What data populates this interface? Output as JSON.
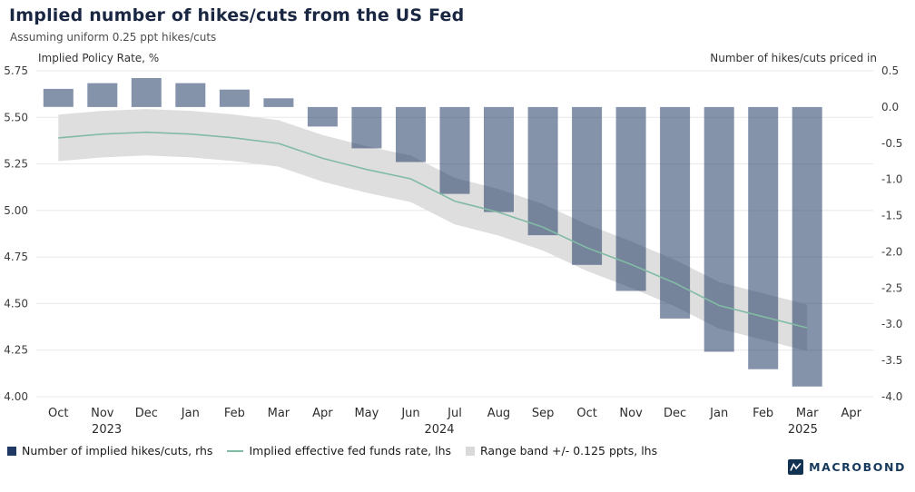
{
  "header": {
    "title": "Implied number of hikes/cuts from the US Fed",
    "subtitle": "Assuming uniform 0.25 ppt hikes/cuts"
  },
  "axes": {
    "left_title": "Implied Policy Rate, %",
    "right_title": "Number of hikes/cuts priced in"
  },
  "legend": [
    {
      "type": "bar",
      "label": "Number of implied hikes/cuts, rhs",
      "color": "#1f3864"
    },
    {
      "type": "line",
      "label": "Implied effective fed funds rate, lhs",
      "color": "#82bba4"
    },
    {
      "type": "band",
      "label": "Range band +/- 0.125 ppts, lhs",
      "color": "#d9d9d9"
    }
  ],
  "branding": {
    "logo_text": "MACROBOND"
  },
  "chart_data": {
    "type": "bar+line+area",
    "categories": [
      "Oct",
      "Nov",
      "Dec",
      "Jan",
      "Feb",
      "Mar",
      "Apr",
      "May",
      "Jun",
      "Jul",
      "Aug",
      "Sep",
      "Oct",
      "Nov",
      "Dec",
      "Jan",
      "Feb",
      "Mar",
      "Apr"
    ],
    "year_labels": [
      {
        "label": "2023",
        "slot": 1.1
      },
      {
        "label": "2024",
        "slot": 8.65
      },
      {
        "label": "2025",
        "slot": 16.9
      }
    ],
    "series": [
      {
        "name": "Number of implied hikes/cuts, rhs",
        "type": "bar",
        "axis": "right",
        "values": [
          0.25,
          0.33,
          0.4,
          0.33,
          0.24,
          0.12,
          -0.27,
          -0.57,
          -0.76,
          -1.2,
          -1.45,
          -1.77,
          -2.18,
          -2.54,
          -2.92,
          -3.38,
          -3.62,
          -3.86,
          null
        ]
      },
      {
        "name": "Implied effective fed funds rate, lhs",
        "type": "line",
        "axis": "left",
        "values": [
          5.39,
          5.41,
          5.42,
          5.41,
          5.39,
          5.36,
          5.28,
          5.22,
          5.17,
          5.05,
          4.99,
          4.91,
          4.8,
          4.71,
          4.61,
          4.49,
          4.43,
          4.37,
          null
        ]
      },
      {
        "name": "Range band +/- 0.125 ppts, lhs",
        "type": "band",
        "axis": "left",
        "half_width": 0.125
      }
    ],
    "left_axis": {
      "min": 4.0,
      "max": 5.75,
      "step": 0.25,
      "ticks": [
        "5.75",
        "5.50",
        "5.25",
        "5.00",
        "4.75",
        "4.50",
        "4.25",
        "4.00"
      ]
    },
    "right_axis": {
      "min": -4.0,
      "max": 0.5,
      "step": 0.5,
      "ticks": [
        "0.5",
        "0.0",
        "-0.5",
        "-1.0",
        "-1.5",
        "-2.0",
        "-2.5",
        "-3.0",
        "-3.5",
        "-4.0"
      ]
    },
    "grid": "horizontal",
    "legend_position": "bottom-left",
    "colors": {
      "bar": "#1f3864",
      "bar_opacity": 0.55,
      "line": "#82bba4",
      "band": "#dedede",
      "grid": "#e8e8e8"
    }
  }
}
